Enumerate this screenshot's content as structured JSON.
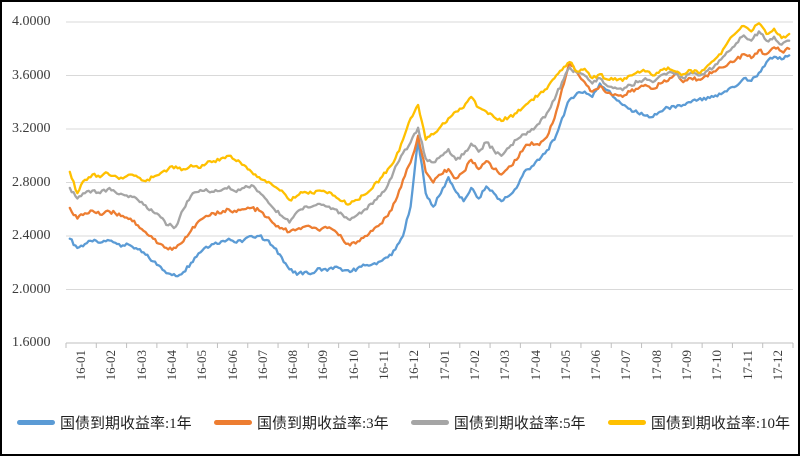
{
  "chart_data": {
    "type": "line",
    "title": "",
    "x_labels": [
      "16-01",
      "16-02",
      "16-03",
      "16-04",
      "16-05",
      "16-06",
      "16-07",
      "16-08",
      "16-09",
      "16-10",
      "16-11",
      "16-12",
      "17-01",
      "17-02",
      "17-03",
      "17-04",
      "17-05",
      "17-06",
      "17-07",
      "17-08",
      "17-09",
      "17-10",
      "17-11",
      "17-12"
    ],
    "points_per_month": 4,
    "ylim": [
      1.6,
      4.0
    ],
    "grid": "horizontal",
    "legend_position": "bottom",
    "y_ticks": {
      "values": [
        4.0,
        3.6,
        3.2,
        2.8,
        2.4,
        2.0,
        1.6
      ],
      "labels": [
        "4.0000",
        "3.6000",
        "3.2000",
        "2.8000",
        "2.4000",
        "2.0000",
        "1.6000"
      ]
    },
    "colors": {
      "axis": "#BFBFBF",
      "gridline": "#D9D9D9",
      "text": "#3B3B3B"
    },
    "series": [
      {
        "id": "1y",
        "name": "国债到期收益率:1年",
        "color": "#5B9BD5",
        "values": [
          2.38,
          2.31,
          2.34,
          2.36,
          2.35,
          2.37,
          2.35,
          2.33,
          2.33,
          2.3,
          2.26,
          2.21,
          2.17,
          2.12,
          2.1,
          2.13,
          2.2,
          2.27,
          2.32,
          2.34,
          2.36,
          2.38,
          2.35,
          2.37,
          2.4,
          2.4,
          2.37,
          2.31,
          2.24,
          2.15,
          2.11,
          2.13,
          2.12,
          2.16,
          2.14,
          2.17,
          2.14,
          2.13,
          2.16,
          2.18,
          2.19,
          2.21,
          2.24,
          2.3,
          2.4,
          2.62,
          3.12,
          2.72,
          2.62,
          2.72,
          2.84,
          2.73,
          2.66,
          2.76,
          2.68,
          2.77,
          2.72,
          2.66,
          2.7,
          2.76,
          2.88,
          2.92,
          2.97,
          3.04,
          3.12,
          3.28,
          3.42,
          3.47,
          3.48,
          3.44,
          3.54,
          3.49,
          3.43,
          3.38,
          3.35,
          3.32,
          3.3,
          3.29,
          3.33,
          3.36,
          3.36,
          3.38,
          3.4,
          3.42,
          3.42,
          3.44,
          3.46,
          3.5,
          3.52,
          3.58,
          3.56,
          3.62,
          3.7,
          3.74,
          3.72,
          3.75
        ]
      },
      {
        "id": "3y",
        "name": "国债到期收益率:3年",
        "color": "#ED7D31",
        "values": [
          2.61,
          2.53,
          2.57,
          2.59,
          2.56,
          2.59,
          2.57,
          2.55,
          2.53,
          2.48,
          2.43,
          2.38,
          2.34,
          2.3,
          2.31,
          2.36,
          2.44,
          2.51,
          2.55,
          2.57,
          2.57,
          2.6,
          2.58,
          2.6,
          2.61,
          2.59,
          2.54,
          2.49,
          2.46,
          2.43,
          2.45,
          2.47,
          2.46,
          2.44,
          2.46,
          2.44,
          2.38,
          2.33,
          2.36,
          2.4,
          2.44,
          2.49,
          2.55,
          2.66,
          2.82,
          2.95,
          3.15,
          2.88,
          2.8,
          2.86,
          2.9,
          2.83,
          2.88,
          2.97,
          2.9,
          2.96,
          2.9,
          2.86,
          2.92,
          2.97,
          3.06,
          3.1,
          3.08,
          3.14,
          3.28,
          3.5,
          3.7,
          3.62,
          3.55,
          3.48,
          3.52,
          3.47,
          3.46,
          3.44,
          3.48,
          3.5,
          3.53,
          3.5,
          3.54,
          3.56,
          3.62,
          3.55,
          3.58,
          3.57,
          3.6,
          3.63,
          3.66,
          3.69,
          3.72,
          3.76,
          3.73,
          3.79,
          3.76,
          3.81,
          3.78,
          3.8
        ]
      },
      {
        "id": "5y",
        "name": "国债到期收益率:5年",
        "color": "#A5A5A5",
        "values": [
          2.76,
          2.68,
          2.72,
          2.74,
          2.72,
          2.75,
          2.73,
          2.71,
          2.7,
          2.67,
          2.63,
          2.58,
          2.54,
          2.48,
          2.47,
          2.6,
          2.7,
          2.73,
          2.75,
          2.73,
          2.74,
          2.77,
          2.73,
          2.76,
          2.78,
          2.73,
          2.67,
          2.6,
          2.55,
          2.5,
          2.58,
          2.62,
          2.62,
          2.64,
          2.62,
          2.6,
          2.56,
          2.52,
          2.56,
          2.6,
          2.64,
          2.7,
          2.78,
          2.92,
          3.02,
          3.1,
          3.21,
          2.98,
          2.95,
          3.0,
          3.05,
          2.97,
          3.01,
          3.09,
          3.03,
          3.1,
          3.04,
          3.0,
          3.06,
          3.12,
          3.16,
          3.2,
          3.24,
          3.32,
          3.42,
          3.55,
          3.66,
          3.62,
          3.6,
          3.54,
          3.58,
          3.52,
          3.51,
          3.49,
          3.53,
          3.55,
          3.58,
          3.55,
          3.6,
          3.62,
          3.61,
          3.58,
          3.62,
          3.6,
          3.63,
          3.66,
          3.72,
          3.78,
          3.84,
          3.9,
          3.86,
          3.93,
          3.86,
          3.89,
          3.83,
          3.86
        ]
      },
      {
        "id": "10y",
        "name": "国债到期收益率:10年",
        "color": "#FFC000",
        "values": [
          2.88,
          2.72,
          2.82,
          2.86,
          2.84,
          2.87,
          2.85,
          2.83,
          2.86,
          2.84,
          2.81,
          2.84,
          2.87,
          2.9,
          2.92,
          2.9,
          2.93,
          2.91,
          2.94,
          2.96,
          2.98,
          3.0,
          2.96,
          2.93,
          2.88,
          2.84,
          2.8,
          2.77,
          2.74,
          2.67,
          2.7,
          2.73,
          2.72,
          2.74,
          2.72,
          2.7,
          2.66,
          2.64,
          2.67,
          2.71,
          2.76,
          2.83,
          2.9,
          2.98,
          3.12,
          3.28,
          3.38,
          3.12,
          3.16,
          3.22,
          3.28,
          3.33,
          3.36,
          3.44,
          3.36,
          3.33,
          3.29,
          3.26,
          3.29,
          3.32,
          3.37,
          3.42,
          3.46,
          3.5,
          3.58,
          3.64,
          3.7,
          3.63,
          3.65,
          3.58,
          3.61,
          3.57,
          3.58,
          3.56,
          3.6,
          3.63,
          3.63,
          3.6,
          3.64,
          3.66,
          3.63,
          3.61,
          3.64,
          3.62,
          3.66,
          3.71,
          3.76,
          3.86,
          3.92,
          3.97,
          3.93,
          3.99,
          3.91,
          3.95,
          3.88,
          3.91
        ]
      }
    ]
  }
}
